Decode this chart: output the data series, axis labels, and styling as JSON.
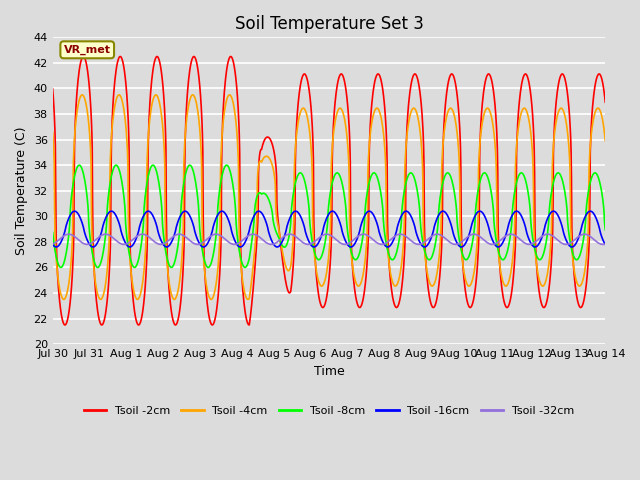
{
  "title": "Soil Temperature Set 3",
  "xlabel": "Time",
  "ylabel": "Soil Temperature (C)",
  "ylim": [
    20,
    44
  ],
  "yticks": [
    20,
    22,
    24,
    26,
    28,
    30,
    32,
    34,
    36,
    38,
    40,
    42,
    44
  ],
  "background_color": "#dcdcdc",
  "plot_bg_color": "#dcdcdc",
  "grid_color": "white",
  "annotation_text": "VR_met",
  "annotation_bg": "#ffffcc",
  "annotation_border": "#888800",
  "legend_labels": [
    "Tsoil -2cm",
    "Tsoil -4cm",
    "Tsoil -8cm",
    "Tsoil -16cm",
    "Tsoil -32cm"
  ],
  "line_colors": [
    "red",
    "orange",
    "lime",
    "blue",
    "mediumpurple"
  ],
  "line_widths": [
    1.2,
    1.2,
    1.2,
    1.2,
    1.2
  ],
  "n_days": 15,
  "points_per_day": 96,
  "date_labels": [
    "Jul 30",
    "Jul 31",
    "Aug 1",
    "Aug 2",
    "Aug 3",
    "Aug 4",
    "Aug 5",
    "Aug 6",
    "Aug 7",
    "Aug 8",
    "Aug 9",
    "Aug 10",
    "Aug 11",
    "Aug 12",
    "Aug 13",
    "Aug 14"
  ],
  "title_fontsize": 12,
  "label_fontsize": 9,
  "tick_fontsize": 8
}
